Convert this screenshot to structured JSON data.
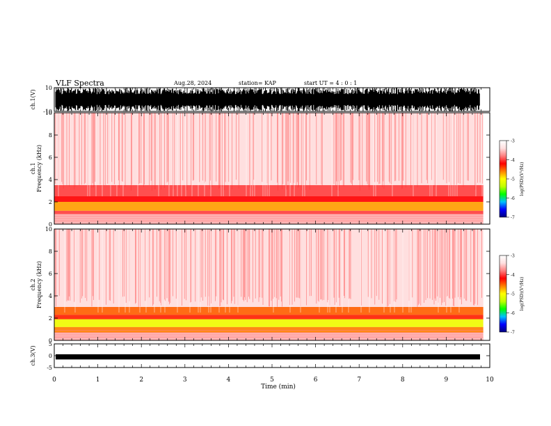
{
  "header": {
    "title": "VLF Spectra",
    "date": "Aug.28, 2024",
    "station": "station= KAP",
    "start": "start  UT =   4 : 0  : 1"
  },
  "chart_data": [
    {
      "type": "line",
      "panel": "ch1-waveform",
      "ylabel": "ch.1(V)",
      "ylim": [
        -10,
        10
      ],
      "ytick_labels": [
        "10",
        "-10"
      ],
      "xlim": [
        0,
        10
      ],
      "description_values": {
        "typical_range": [
          -10,
          10
        ]
      }
    },
    {
      "type": "heatmap",
      "panel": "ch1-spectrogram",
      "ylabel": "Frequency (kHz)",
      "panel_label": "ch.1",
      "ylim": [
        0,
        10
      ],
      "ytick_labels": [
        "0",
        "2",
        "4",
        "6",
        "8",
        "10"
      ],
      "xlim": [
        0,
        9.85
      ],
      "bands": [
        {
          "from": 0,
          "to": 0.9,
          "level": -3.6
        },
        {
          "from": 0.9,
          "to": 1.2,
          "level": -4.0
        },
        {
          "from": 1.2,
          "to": 2.0,
          "level": -4.7
        },
        {
          "from": 2.0,
          "to": 2.5,
          "level": -4.2
        },
        {
          "from": 2.5,
          "to": 3.5,
          "level": -4.0
        },
        {
          "from": 3.5,
          "to": 10,
          "level": -3.3
        }
      ]
    },
    {
      "type": "heatmap",
      "panel": "ch2-spectrogram",
      "ylabel": "Frequency (kHz)",
      "panel_label": "ch.2",
      "ylim": [
        0,
        10
      ],
      "ytick_labels": [
        "0",
        "2",
        "4",
        "6",
        "8",
        "10"
      ],
      "xlim": [
        0,
        9.85
      ],
      "bands": [
        {
          "from": 0,
          "to": 0.7,
          "level": -3.6
        },
        {
          "from": 0.7,
          "to": 1.2,
          "level": -4.6
        },
        {
          "from": 1.2,
          "to": 1.9,
          "level": -5.1
        },
        {
          "from": 1.9,
          "to": 2.3,
          "level": -4.3
        },
        {
          "from": 2.3,
          "to": 3.0,
          "level": -4.5
        },
        {
          "from": 3.0,
          "to": 10,
          "level": -3.3
        }
      ]
    },
    {
      "type": "line",
      "panel": "ch3-waveform",
      "ylabel": "ch.3(V)",
      "ylim": [
        -5,
        5
      ],
      "ytick_labels": [
        "5",
        "0",
        "-5"
      ],
      "xlim": [
        0,
        9.85
      ],
      "description_values": {
        "typical_range": [
          -1,
          0
        ]
      }
    }
  ],
  "colorbar": {
    "label": "log(PSD)(V²/Hz)",
    "range": [
      -7,
      -3
    ],
    "tick_labels": [
      "-3",
      "-4",
      "-5",
      "-6",
      "-7"
    ],
    "colors": [
      "#000080",
      "#0000ff",
      "#00c0ff",
      "#00ff00",
      "#c0ff00",
      "#ffff00",
      "#ff8000",
      "#ff0000",
      "#ff8080",
      "#ffe0e0",
      "#ffffff"
    ]
  },
  "xaxis": {
    "xlabel": "Time (min)",
    "tick_labels": [
      "0",
      "1",
      "2",
      "3",
      "4",
      "5",
      "6",
      "7",
      "8",
      "9",
      "10"
    ],
    "xlim": [
      0,
      10
    ]
  }
}
